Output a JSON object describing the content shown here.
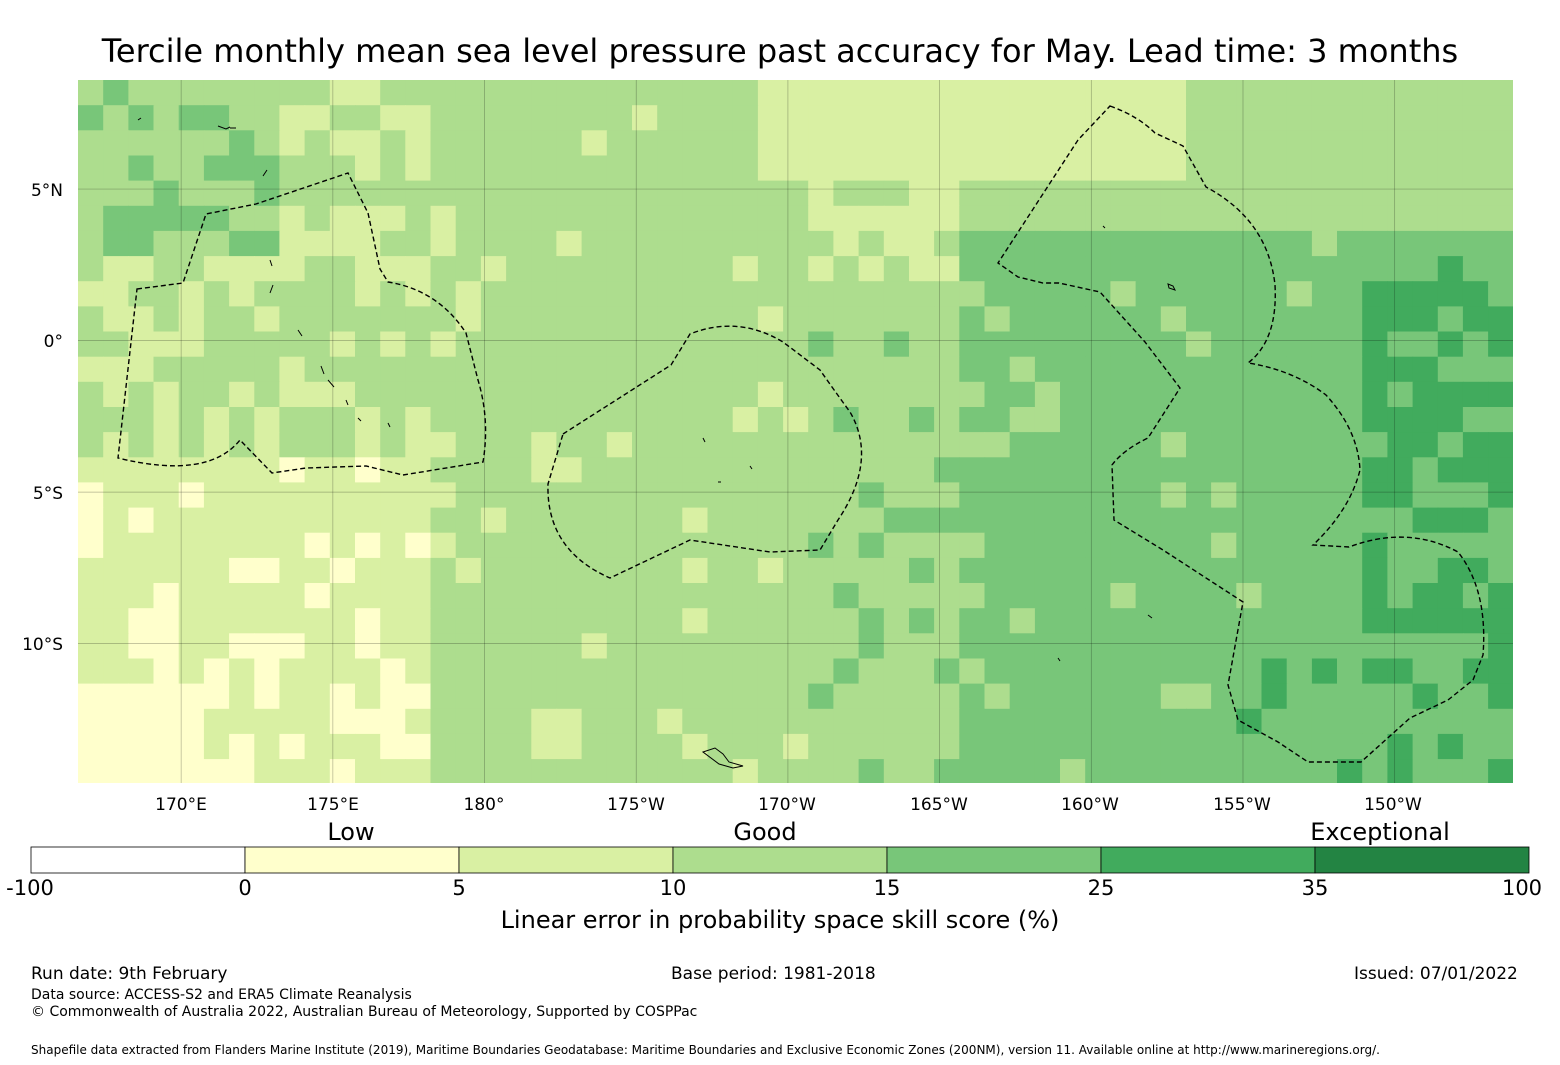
{
  "title": "Tercile monthly mean sea level pressure past accuracy for May. Lead time: 3 months",
  "map": {
    "lat_labels": [
      "5°N",
      "0°",
      "5°S",
      "10°S"
    ],
    "lon_labels": [
      "170°E",
      "175°E",
      "180°",
      "175°W",
      "170°W",
      "165°W",
      "160°W",
      "155°W",
      "150°W"
    ],
    "lat_values": [
      5,
      0,
      -5,
      -10
    ],
    "lon_values": [
      170,
      175,
      180,
      185,
      190,
      195,
      200,
      205,
      210
    ],
    "extent": {
      "lon_min": 166.6,
      "lon_max": 213.9,
      "lat_min": -14.6,
      "lat_max": 8.6
    },
    "cell_size_deg": 0.83,
    "class_colors": [
      "#ffffcc",
      "#d9f0a3",
      "#addd8e",
      "#78c679",
      "#41ab5d",
      "#238443"
    ],
    "skill_regions_description_values": {
      "low_west": 1,
      "mid": 2,
      "east": 3,
      "far_east": 4
    },
    "boundary_stroke": "#000000"
  },
  "colorbar": {
    "categories": [
      "Low",
      "Good",
      "Exceptional"
    ],
    "ticks": [
      "-100",
      "0",
      "5",
      "10",
      "15",
      "25",
      "35",
      "100"
    ],
    "colors": [
      "#ffffff",
      "#ffffcc",
      "#d9f0a3",
      "#addd8e",
      "#78c679",
      "#41ab5d",
      "#238443"
    ],
    "label": "Linear error in probability space skill score (%)"
  },
  "footer": {
    "run_date": "Run date: 9th February",
    "base_period": "Base period: 1981-2018",
    "issued": "Issued: 07/01/2022",
    "data_source": "Data source: ACCESS-S2 and ERA5 Climate Reanalysis",
    "copyright": "© Commonwealth of Australia 2022, Australian Bureau of Meteorology, Supported by COSPPac",
    "shapefile": "Shapefile data extracted from Flanders Marine Institute (2019), Maritime Boundaries Geodatabase: Maritime Boundaries and Exclusive Economic Zones (200NM), version 11. Available online at http://www.marineregions.org/."
  }
}
